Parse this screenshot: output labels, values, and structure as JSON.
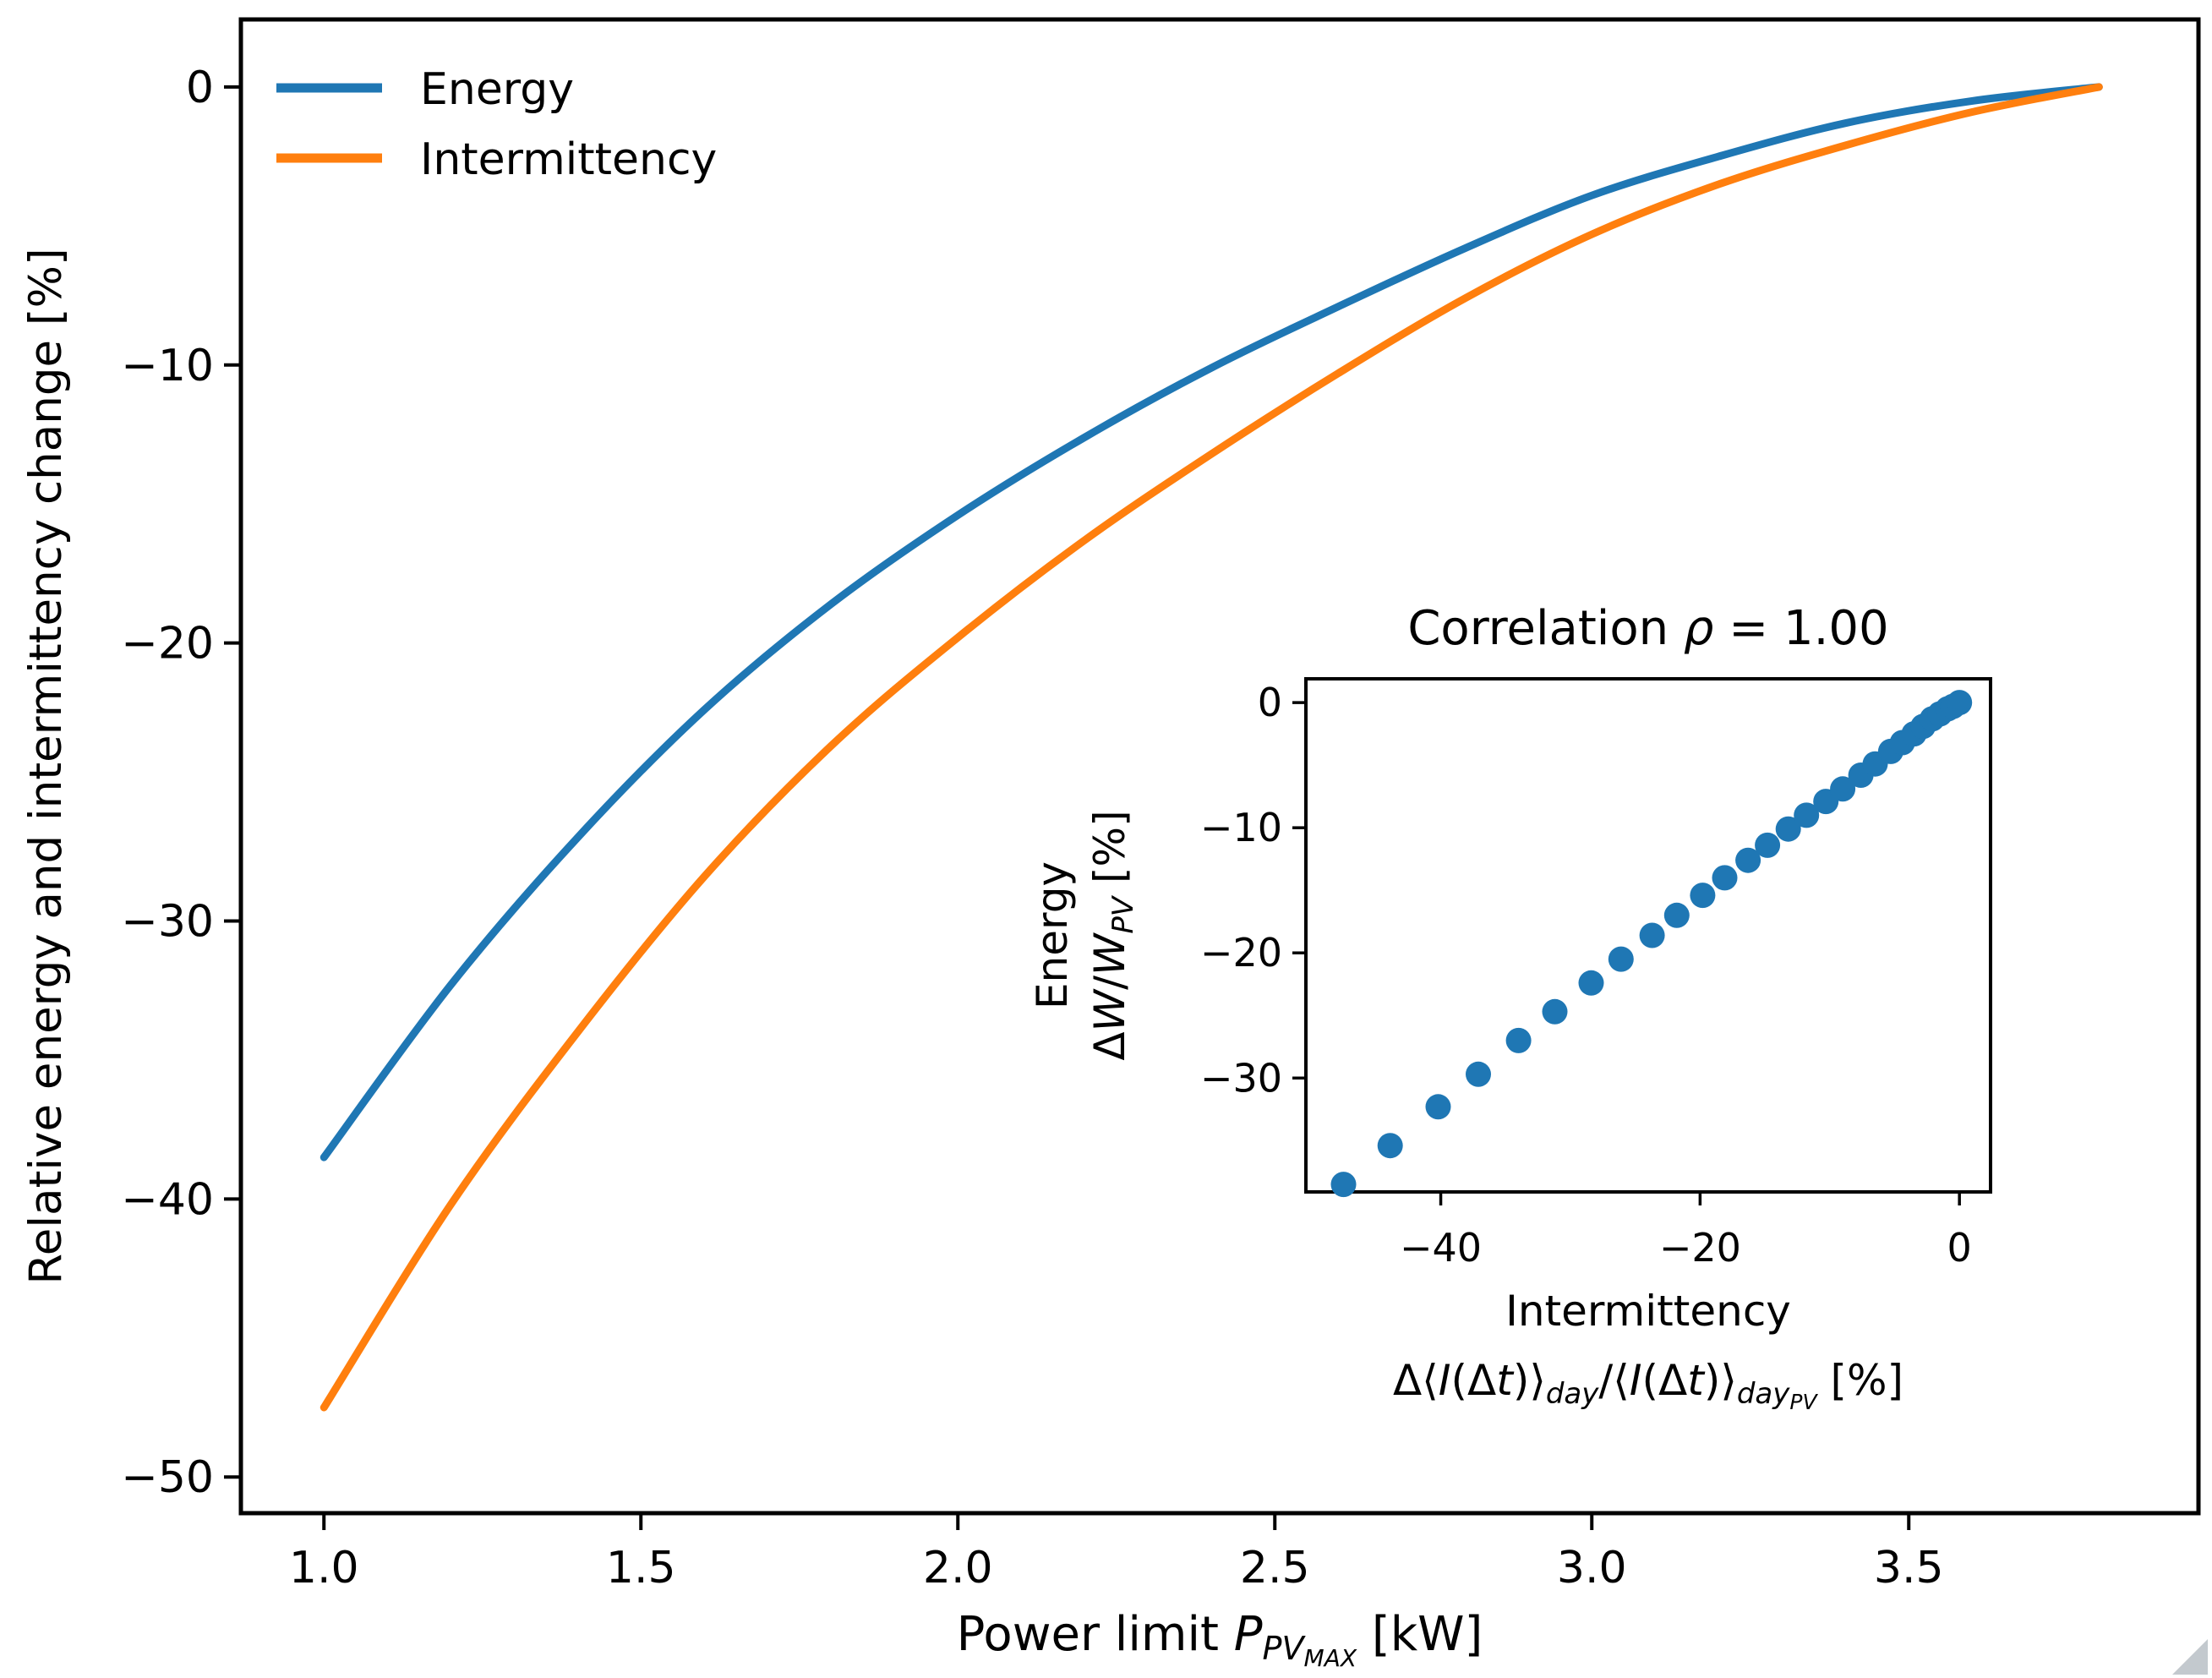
{
  "figure": {
    "background": "#ffffff",
    "corner_artifact_color": "#b9bfc6"
  },
  "chart_data": [
    {
      "type": "line",
      "title": "",
      "xlabel": "Power limit P_PV_MAX [kW]",
      "xlabel_segments": [
        {
          "t": "Power limit ",
          "s": "n"
        },
        {
          "t": "P",
          "s": "i"
        },
        {
          "t": "PV",
          "s": "sub"
        },
        {
          "t": "MAX",
          "s": "subsub"
        },
        {
          "t": " [kW]",
          "s": "n"
        }
      ],
      "ylabel": "Relative energy and intermittency change [%]",
      "xlim": [
        0.869,
        3.957
      ],
      "ylim": [
        -51.3,
        2.43
      ],
      "grid": false,
      "xticks": [
        "1.0",
        "1.5",
        "2.0",
        "2.5",
        "3.0",
        "3.5"
      ],
      "xtick_values": [
        1.0,
        1.5,
        2.0,
        2.5,
        3.0,
        3.5
      ],
      "yticks": [
        "0",
        "−10",
        "−20",
        "−30",
        "−40",
        "−50"
      ],
      "ytick_values": [
        0,
        -10,
        -20,
        -30,
        -40,
        -50
      ],
      "legend": {
        "position": "upper left",
        "entries": [
          {
            "label": "Energy",
            "color": "#1f77b4"
          },
          {
            "label": "Intermittency",
            "color": "#ff7f0e"
          }
        ]
      },
      "x": [
        1.0,
        1.2,
        1.4,
        1.6,
        1.8,
        2.0,
        2.2,
        2.4,
        2.6,
        2.8,
        3.0,
        3.2,
        3.4,
        3.6,
        3.8
      ],
      "series": [
        {
          "name": "Energy",
          "color": "#1f77b4",
          "values": [
            -38.5,
            -32.3,
            -27.0,
            -22.4,
            -18.6,
            -15.4,
            -12.6,
            -10.1,
            -7.9,
            -5.8,
            -3.9,
            -2.5,
            -1.3,
            -0.5,
            0.0
          ]
        },
        {
          "name": "Intermittency",
          "color": "#ff7f0e",
          "values": [
            -47.5,
            -40.2,
            -34.0,
            -28.4,
            -23.7,
            -19.8,
            -16.3,
            -13.2,
            -10.3,
            -7.6,
            -5.3,
            -3.5,
            -2.1,
            -0.9,
            0.0
          ]
        }
      ]
    },
    {
      "type": "scatter",
      "title": "Correlation ρ = 1.00",
      "title_segments": [
        {
          "t": "Correlation ",
          "s": "n"
        },
        {
          "t": "ρ",
          "s": "i"
        },
        {
          "t": " = 1.00",
          "s": "n"
        }
      ],
      "xlabel_line1": "Intermittency",
      "xlabel_line2": "Δ⟨I(Δt)⟩_day/⟨I(Δt)⟩_day_PV [%]",
      "xlabel_line2_segments": [
        {
          "t": "Δ⟨",
          "s": "n"
        },
        {
          "t": "I",
          "s": "i"
        },
        {
          "t": "(Δ",
          "s": "n"
        },
        {
          "t": "t",
          "s": "i"
        },
        {
          "t": ")⟩",
          "s": "n"
        },
        {
          "t": "day",
          "s": "sub"
        },
        {
          "t": "/⟨",
          "s": "n"
        },
        {
          "t": "I",
          "s": "i"
        },
        {
          "t": "(Δ",
          "s": "n"
        },
        {
          "t": "t",
          "s": "i"
        },
        {
          "t": ")⟩",
          "s": "n"
        },
        {
          "t": "day",
          "s": "sub"
        },
        {
          "t": "PV",
          "s": "subsub"
        },
        {
          "t": " [%]",
          "s": "n"
        }
      ],
      "ylabel_line1": "Energy",
      "ylabel_line2": "ΔW/W_PV [%]",
      "ylabel_line2_segments": [
        {
          "t": "Δ",
          "s": "n"
        },
        {
          "t": "W",
          "s": "i"
        },
        {
          "t": "/",
          "s": "n"
        },
        {
          "t": "W",
          "s": "i"
        },
        {
          "t": "PV",
          "s": "sub"
        },
        {
          "t": " [%]",
          "s": "n"
        }
      ],
      "xlim": [
        -50.4,
        2.4
      ],
      "ylim": [
        -39.1,
        1.9
      ],
      "grid": false,
      "xticks": [
        "−40",
        "−20",
        "0"
      ],
      "xtick_values": [
        -40,
        -20,
        0
      ],
      "yticks": [
        "0",
        "−10",
        "−20",
        "−30"
      ],
      "ytick_values": [
        0,
        -10,
        -20,
        -30
      ],
      "marker_color": "#1f77b4",
      "points": [
        [
          -47.5,
          -38.5
        ],
        [
          -43.9,
          -35.4
        ],
        [
          -40.2,
          -32.3
        ],
        [
          -37.1,
          -29.7
        ],
        [
          -34.0,
          -27.0
        ],
        [
          -31.2,
          -24.7
        ],
        [
          -28.4,
          -22.4
        ],
        [
          -26.1,
          -20.5
        ],
        [
          -23.7,
          -18.6
        ],
        [
          -21.8,
          -17.0
        ],
        [
          -19.8,
          -15.4
        ],
        [
          -18.1,
          -14.0
        ],
        [
          -16.3,
          -12.6
        ],
        [
          -14.8,
          -11.4
        ],
        [
          -13.2,
          -10.1
        ],
        [
          -11.8,
          -9.0
        ],
        [
          -10.3,
          -7.9
        ],
        [
          -9.0,
          -6.9
        ],
        [
          -7.6,
          -5.8
        ],
        [
          -6.5,
          -4.9
        ],
        [
          -5.3,
          -3.9
        ],
        [
          -4.4,
          -3.2
        ],
        [
          -3.5,
          -2.5
        ],
        [
          -2.8,
          -1.9
        ],
        [
          -2.1,
          -1.3
        ],
        [
          -1.5,
          -0.9
        ],
        [
          -0.9,
          -0.5
        ],
        [
          -0.5,
          -0.3
        ],
        [
          0.0,
          0.0
        ]
      ]
    }
  ]
}
